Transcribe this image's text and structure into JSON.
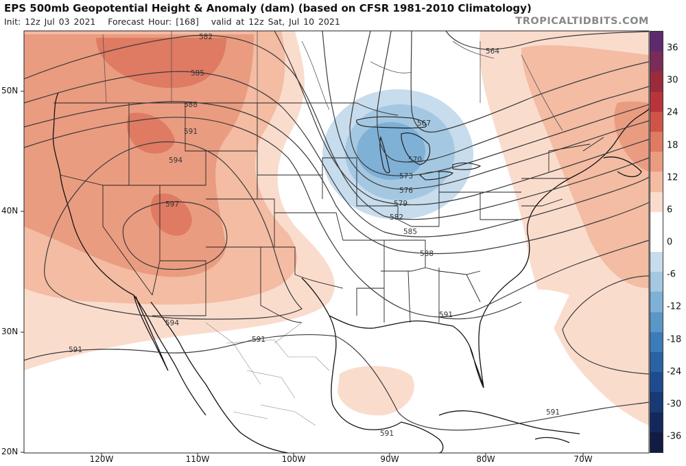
{
  "header": {
    "title": "EPS 500mb Geopotential Height & Anomaly (dam) (based on CFSR 1981-2010 Climatology)",
    "init": "Init: 12z Jul 03 2021",
    "forecast": "Forecast Hour: [168]",
    "valid": "valid at 12z Sat, Jul 10 2021",
    "brand": "TROPICALTIDBITS.COM"
  },
  "axes": {
    "lat_labels": [
      "50N",
      "40N",
      "30N",
      "20N"
    ],
    "lon_labels": [
      "120W",
      "110W",
      "100W",
      "90W",
      "80W",
      "70W"
    ]
  },
  "colorbar": {
    "labels": [
      "36",
      "30",
      "24",
      "18",
      "12",
      "6",
      "0",
      "-6",
      "-12",
      "-18",
      "-24",
      "-30",
      "-36"
    ],
    "colors": [
      "#5e2a6e",
      "#7a2b57",
      "#9a2b3c",
      "#b8343a",
      "#cf5448",
      "#df7a63",
      "#ea9c80",
      "#f3bca3",
      "#fadccd",
      "#ffffff",
      "#ffffff",
      "#c7dcec",
      "#a4c8e2",
      "#7fb0d6",
      "#5a97c8",
      "#3c7cb8",
      "#2a63a4",
      "#1e4c8e",
      "#173a76",
      "#13285c",
      "#101c44"
    ]
  },
  "contours": {
    "labels": [
      "564",
      "567",
      "570",
      "573",
      "576",
      "579",
      "582",
      "582",
      "585",
      "585",
      "588",
      "588",
      "591",
      "591",
      "591",
      "591",
      "591",
      "594",
      "594",
      "597"
    ],
    "highlight_color": "#333333",
    "positive_anomaly_color": "#ea9c80",
    "negative_anomaly_color": "#7fb0d6"
  }
}
